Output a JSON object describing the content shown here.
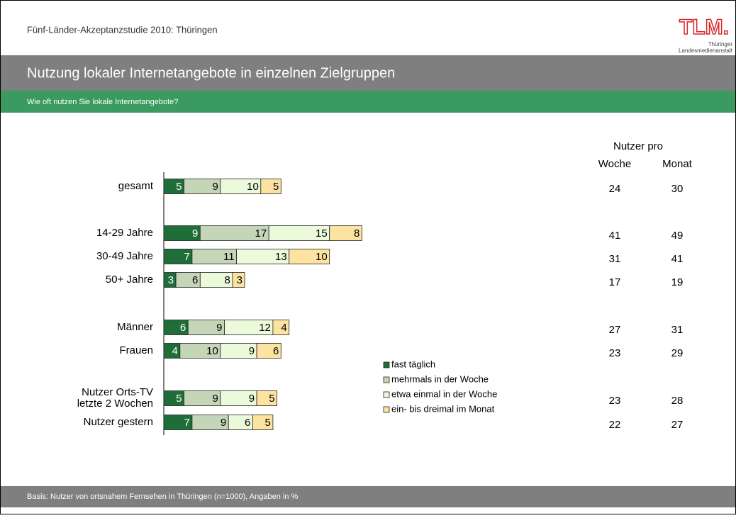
{
  "header": {
    "text": "Fünf-Länder-Akzeptanzstudie 2010: Thüringen",
    "logo": {
      "mark": "TLM.",
      "line1": "Thüringer",
      "line2": "Landesmedienanstalt"
    }
  },
  "footer": "Basis: Nutzer von ortsnahem Fernsehen in Thüringen (n=1000), Angaben in %",
  "users": {
    "title": "Nutzer pro",
    "columns": [
      "Woche",
      "Monat"
    ],
    "rows": [
      [
        24,
        30
      ],
      [
        41,
        49
      ],
      [
        31,
        41
      ],
      [
        17,
        19
      ],
      [
        27,
        31
      ],
      [
        23,
        29
      ],
      [
        23,
        28
      ],
      [
        22,
        27
      ]
    ]
  },
  "chart_data": {
    "type": "stacked-bar-horizontal",
    "title": "Nutzung lokaler Internetangebote in einzelnen Zielgruppen",
    "subtitle": "Wie oft nutzen Sie lokale Internetangebote?",
    "categories": [
      "gesamt",
      "14-29 Jahre",
      "30-49 Jahre",
      "50+ Jahre",
      "Männer",
      "Frauen",
      "Nutzer Orts-TV\nletzte 2 Wochen",
      "Nutzer gestern"
    ],
    "series": [
      {
        "name": "fast täglich",
        "color": "#1f6e3a",
        "values": [
          5,
          9,
          7,
          3,
          6,
          4,
          5,
          7
        ]
      },
      {
        "name": "mehrmals in der Woche",
        "color": "#c5d5b8",
        "values": [
          9,
          17,
          11,
          6,
          9,
          10,
          9,
          9
        ]
      },
      {
        "name": "etwa einmal in der Woche",
        "color": "#eafadb",
        "values": [
          10,
          15,
          13,
          8,
          12,
          9,
          9,
          6
        ]
      },
      {
        "name": "ein- bis dreimal im Monat",
        "color": "#fde3a1",
        "values": [
          5,
          8,
          10,
          3,
          4,
          6,
          5,
          5
        ]
      }
    ]
  }
}
